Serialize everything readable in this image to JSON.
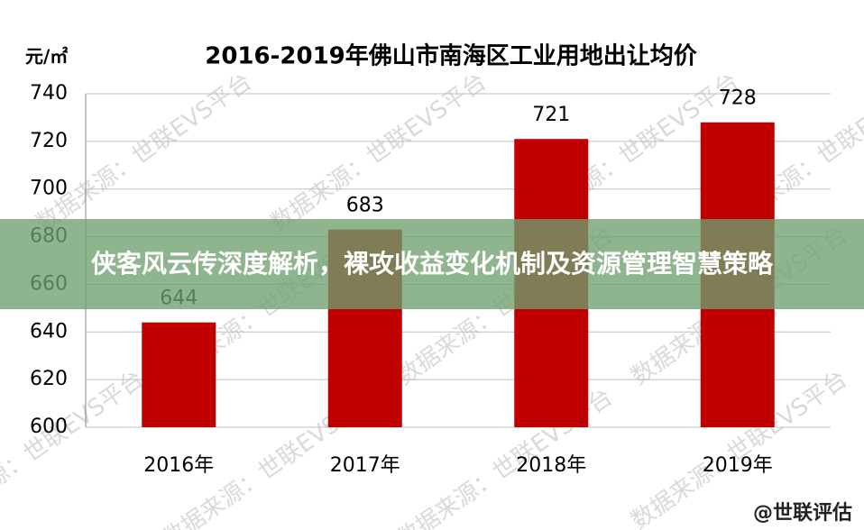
{
  "chart_data": {
    "type": "bar",
    "title": "2016-2019年佛山市南海区工业用地出让均价",
    "y_unit": "元/㎡",
    "categories": [
      "2016年",
      "2017年",
      "2018年",
      "2019年"
    ],
    "values": [
      644,
      683,
      721,
      728
    ],
    "color": "#c00000",
    "ylim": [
      600,
      740
    ],
    "yticks": [
      600,
      620,
      640,
      660,
      680,
      700,
      720,
      740
    ],
    "grid": true,
    "watermark": "数据来源：世联EVS平台",
    "source": "@世联评估"
  },
  "banner": {
    "text": "侠客风云传深度解析，裸攻收益变化机制及资源管理智慧策略"
  }
}
